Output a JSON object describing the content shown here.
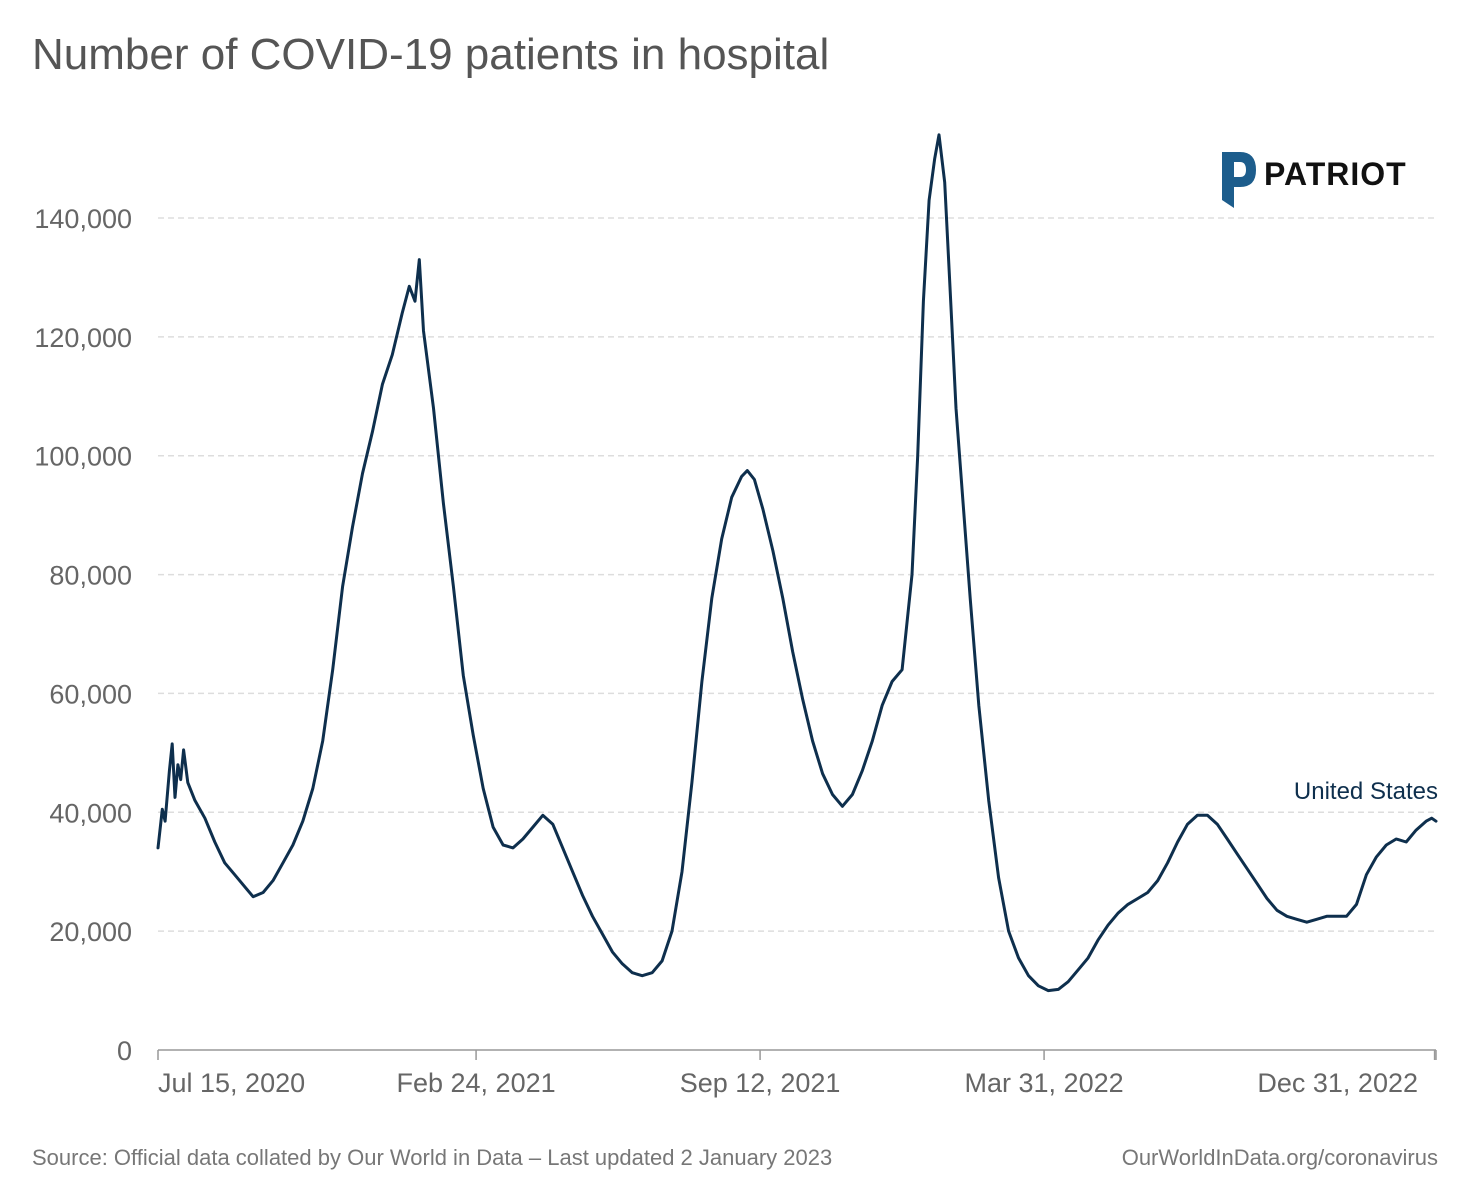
{
  "title": "Number of COVID-19 patients in hospital",
  "footer": {
    "source": "Source: Official data collated by Our World in Data – Last updated 2 January 2023",
    "url": "OurWorldInData.org/coronavirus"
  },
  "logo": {
    "text": "PATRIOT",
    "tagline": ""
  },
  "colors": {
    "line": "#0e2f4d",
    "grid": "#dddddd",
    "tick_text": "#666666",
    "logo_blue": "#1d5d8c"
  },
  "chart_data": {
    "type": "line",
    "title": "Number of COVID-19 patients in hospital",
    "xlabel": "",
    "ylabel": "",
    "xlim": [
      "2020-07-15",
      "2023-01-01"
    ],
    "ylim": [
      0,
      150000
    ],
    "y_ticks": [
      0,
      20000,
      40000,
      60000,
      80000,
      100000,
      120000,
      140000
    ],
    "y_tick_labels": [
      "0",
      "20,000",
      "40,000",
      "60,000",
      "80,000",
      "100,000",
      "120,000",
      "140,000"
    ],
    "x_ticks": [
      "2020-07-15",
      "2021-02-24",
      "2021-09-12",
      "2022-03-31",
      "2022-12-31"
    ],
    "x_tick_labels": [
      "Jul 15, 2020",
      "Feb 24, 2021",
      "Sep 12, 2021",
      "Mar 31, 2022",
      "Dec 31, 2022"
    ],
    "grid": true,
    "series": [
      {
        "name": "United States",
        "points": [
          [
            "2020-07-15",
            34000
          ],
          [
            "2020-07-18",
            40500
          ],
          [
            "2020-07-20",
            38500
          ],
          [
            "2020-07-23",
            47000
          ],
          [
            "2020-07-25",
            51500
          ],
          [
            "2020-07-27",
            42500
          ],
          [
            "2020-07-29",
            48000
          ],
          [
            "2020-07-31",
            45500
          ],
          [
            "2020-08-02",
            50500
          ],
          [
            "2020-08-05",
            45000
          ],
          [
            "2020-08-10",
            42000
          ],
          [
            "2020-08-17",
            39000
          ],
          [
            "2020-08-24",
            35000
          ],
          [
            "2020-08-31",
            31500
          ],
          [
            "2020-09-07",
            29500
          ],
          [
            "2020-09-14",
            27500
          ],
          [
            "2020-09-20",
            25800
          ],
          [
            "2020-09-27",
            26500
          ],
          [
            "2020-10-04",
            28500
          ],
          [
            "2020-10-11",
            31500
          ],
          [
            "2020-10-18",
            34500
          ],
          [
            "2020-10-25",
            38500
          ],
          [
            "2020-11-01",
            44000
          ],
          [
            "2020-11-08",
            52000
          ],
          [
            "2020-11-15",
            64000
          ],
          [
            "2020-11-22",
            78000
          ],
          [
            "2020-11-29",
            88000
          ],
          [
            "2020-12-06",
            97000
          ],
          [
            "2020-12-13",
            104000
          ],
          [
            "2020-12-20",
            112000
          ],
          [
            "2020-12-27",
            117000
          ],
          [
            "2021-01-03",
            124000
          ],
          [
            "2021-01-08",
            128500
          ],
          [
            "2021-01-12",
            126000
          ],
          [
            "2021-01-15",
            133000
          ],
          [
            "2021-01-18",
            121000
          ],
          [
            "2021-01-25",
            108000
          ],
          [
            "2021-02-01",
            92000
          ],
          [
            "2021-02-08",
            78000
          ],
          [
            "2021-02-15",
            63000
          ],
          [
            "2021-02-22",
            53000
          ],
          [
            "2021-03-01",
            44000
          ],
          [
            "2021-03-08",
            37500
          ],
          [
            "2021-03-15",
            34500
          ],
          [
            "2021-03-22",
            34000
          ],
          [
            "2021-03-29",
            35500
          ],
          [
            "2021-04-05",
            37500
          ],
          [
            "2021-04-12",
            39500
          ],
          [
            "2021-04-19",
            38000
          ],
          [
            "2021-04-26",
            34000
          ],
          [
            "2021-05-03",
            30000
          ],
          [
            "2021-05-10",
            26000
          ],
          [
            "2021-05-17",
            22500
          ],
          [
            "2021-05-24",
            19500
          ],
          [
            "2021-05-31",
            16500
          ],
          [
            "2021-06-07",
            14500
          ],
          [
            "2021-06-14",
            13000
          ],
          [
            "2021-06-21",
            12500
          ],
          [
            "2021-06-28",
            13000
          ],
          [
            "2021-07-05",
            15000
          ],
          [
            "2021-07-12",
            20000
          ],
          [
            "2021-07-19",
            30000
          ],
          [
            "2021-07-26",
            45000
          ],
          [
            "2021-08-02",
            62000
          ],
          [
            "2021-08-09",
            76000
          ],
          [
            "2021-08-16",
            86000
          ],
          [
            "2021-08-23",
            93000
          ],
          [
            "2021-08-30",
            96500
          ],
          [
            "2021-09-03",
            97500
          ],
          [
            "2021-09-08",
            96000
          ],
          [
            "2021-09-14",
            91000
          ],
          [
            "2021-09-21",
            84000
          ],
          [
            "2021-09-28",
            76000
          ],
          [
            "2021-10-05",
            67000
          ],
          [
            "2021-10-12",
            59000
          ],
          [
            "2021-10-19",
            52000
          ],
          [
            "2021-10-26",
            46500
          ],
          [
            "2021-11-02",
            43000
          ],
          [
            "2021-11-09",
            41000
          ],
          [
            "2021-11-16",
            43000
          ],
          [
            "2021-11-23",
            47000
          ],
          [
            "2021-11-30",
            52000
          ],
          [
            "2021-12-07",
            58000
          ],
          [
            "2021-12-14",
            62000
          ],
          [
            "2021-12-21",
            64000
          ],
          [
            "2021-12-28",
            80000
          ],
          [
            "2022-01-01",
            100000
          ],
          [
            "2022-01-05",
            126000
          ],
          [
            "2022-01-09",
            143000
          ],
          [
            "2022-01-13",
            150000
          ],
          [
            "2022-01-16",
            154000
          ],
          [
            "2022-01-20",
            146000
          ],
          [
            "2022-01-24",
            127000
          ],
          [
            "2022-01-28",
            108000
          ],
          [
            "2022-02-02",
            92000
          ],
          [
            "2022-02-07",
            76000
          ],
          [
            "2022-02-13",
            58000
          ],
          [
            "2022-02-20",
            42000
          ],
          [
            "2022-02-27",
            29000
          ],
          [
            "2022-03-06",
            20000
          ],
          [
            "2022-03-13",
            15500
          ],
          [
            "2022-03-20",
            12500
          ],
          [
            "2022-03-27",
            10800
          ],
          [
            "2022-04-03",
            10000
          ],
          [
            "2022-04-10",
            10200
          ],
          [
            "2022-04-17",
            11500
          ],
          [
            "2022-04-24",
            13500
          ],
          [
            "2022-05-01",
            15500
          ],
          [
            "2022-05-08",
            18500
          ],
          [
            "2022-05-15",
            21000
          ],
          [
            "2022-05-22",
            23000
          ],
          [
            "2022-05-29",
            24500
          ],
          [
            "2022-06-05",
            25500
          ],
          [
            "2022-06-12",
            26500
          ],
          [
            "2022-06-19",
            28500
          ],
          [
            "2022-06-26",
            31500
          ],
          [
            "2022-07-03",
            35000
          ],
          [
            "2022-07-10",
            38000
          ],
          [
            "2022-07-17",
            39500
          ],
          [
            "2022-07-24",
            39500
          ],
          [
            "2022-07-31",
            38000
          ],
          [
            "2022-08-07",
            35500
          ],
          [
            "2022-08-14",
            33000
          ],
          [
            "2022-08-21",
            30500
          ],
          [
            "2022-08-28",
            28000
          ],
          [
            "2022-09-04",
            25500
          ],
          [
            "2022-09-11",
            23500
          ],
          [
            "2022-09-18",
            22500
          ],
          [
            "2022-09-25",
            22000
          ],
          [
            "2022-10-02",
            21500
          ],
          [
            "2022-10-09",
            22000
          ],
          [
            "2022-10-16",
            22500
          ],
          [
            "2022-10-23",
            22500
          ],
          [
            "2022-10-30",
            22500
          ],
          [
            "2022-11-06",
            24500
          ],
          [
            "2022-11-13",
            29500
          ],
          [
            "2022-11-20",
            32500
          ],
          [
            "2022-11-27",
            34500
          ],
          [
            "2022-12-04",
            35500
          ],
          [
            "2022-12-11",
            35000
          ],
          [
            "2022-12-18",
            37000
          ],
          [
            "2022-12-25",
            38500
          ],
          [
            "2022-12-29",
            39000
          ],
          [
            "2023-01-01",
            38500
          ]
        ]
      }
    ]
  }
}
